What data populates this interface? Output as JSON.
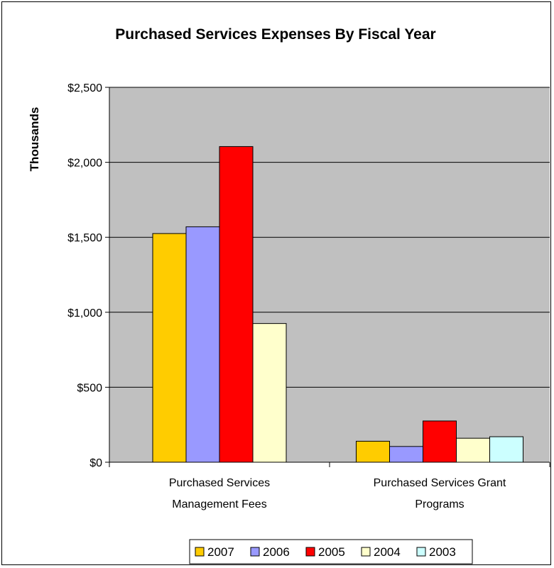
{
  "chart_data": {
    "type": "bar",
    "title": "Purchased Services Expenses By Fiscal Year",
    "ylabel": "Thousands",
    "xlabel": "",
    "ylim": [
      0,
      2500
    ],
    "yticks": [
      0,
      500,
      1000,
      1500,
      2000,
      2500
    ],
    "ytick_labels": [
      "$0",
      "$500",
      "$1,000",
      "$1,500",
      "$2,000",
      "$2,500"
    ],
    "categories": [
      [
        "Purchased Services",
        "Management Fees"
      ],
      [
        "Purchased Services Grant",
        "Programs"
      ]
    ],
    "series": [
      {
        "name": "2007",
        "color": "#FFCC00",
        "values": [
          1525,
          140
        ]
      },
      {
        "name": "2006",
        "color": "#9999FF",
        "values": [
          1570,
          105
        ]
      },
      {
        "name": "2005",
        "color": "#FF0000",
        "values": [
          2105,
          275
        ]
      },
      {
        "name": "2004",
        "color": "#FFFFCC",
        "values": [
          925,
          160
        ]
      },
      {
        "name": "2003",
        "color": "#CCFFFF",
        "values": [
          null,
          170
        ]
      }
    ],
    "grid": true,
    "plot_background": "#C0C0C0",
    "legend_position": "bottom"
  }
}
